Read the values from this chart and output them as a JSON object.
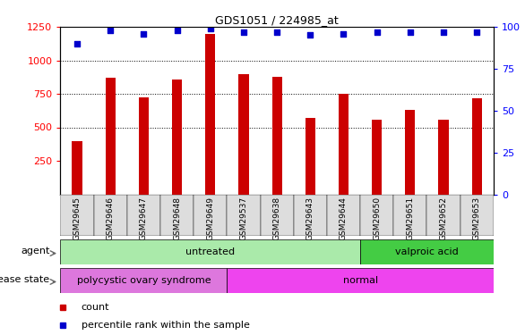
{
  "title": "GDS1051 / 224985_at",
  "samples": [
    "GSM29645",
    "GSM29646",
    "GSM29647",
    "GSM29648",
    "GSM29649",
    "GSM29537",
    "GSM29638",
    "GSM29643",
    "GSM29644",
    "GSM29650",
    "GSM29651",
    "GSM29652",
    "GSM29653"
  ],
  "counts": [
    400,
    870,
    725,
    855,
    1200,
    900,
    875,
    570,
    750,
    555,
    630,
    555,
    720
  ],
  "percentiles": [
    90,
    98,
    96,
    98,
    99,
    97,
    97,
    95,
    96,
    97,
    97,
    97,
    97
  ],
  "ylim_left": [
    0,
    1250
  ],
  "ylim_right": [
    0,
    100
  ],
  "yticks_left": [
    250,
    500,
    750,
    1000,
    1250
  ],
  "yticks_right": [
    0,
    25,
    50,
    75,
    100
  ],
  "bar_color": "#cc0000",
  "dot_color": "#0000cc",
  "agent_groups": [
    {
      "label": "untreated",
      "start": 0,
      "end": 9,
      "color": "#aaeaaa"
    },
    {
      "label": "valproic acid",
      "start": 9,
      "end": 13,
      "color": "#44cc44"
    }
  ],
  "disease_groups": [
    {
      "label": "polycystic ovary syndrome",
      "start": 0,
      "end": 5,
      "color": "#dd77dd"
    },
    {
      "label": "normal",
      "start": 5,
      "end": 13,
      "color": "#ee44ee"
    }
  ],
  "legend_count_label": "count",
  "legend_pct_label": "percentile rank within the sample",
  "agent_label": "agent",
  "disease_label": "disease state",
  "dotted_gridlines": [
    500,
    750,
    1000
  ],
  "bar_width": 0.3,
  "dot_size": 22
}
